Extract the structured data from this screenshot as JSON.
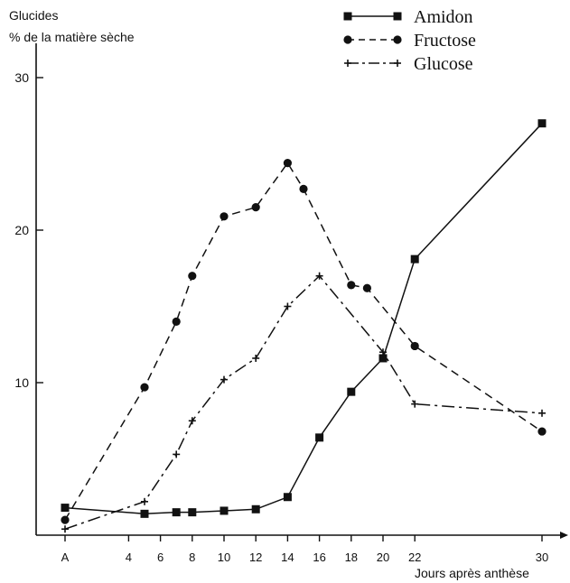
{
  "chart_data": {
    "type": "line",
    "ylabel_line1": "Glucides",
    "ylabel_line2": "% de la matière sèche",
    "xlabel": "Jours après anthèse",
    "ylim": [
      0,
      30
    ],
    "yticks": [
      10,
      20,
      30
    ],
    "xticks": [
      {
        "label": "A",
        "x": 0
      },
      {
        "label": "4",
        "x": 4
      },
      {
        "label": "6",
        "x": 6
      },
      {
        "label": "8",
        "x": 8
      },
      {
        "label": "10",
        "x": 10
      },
      {
        "label": "12",
        "x": 12
      },
      {
        "label": "14",
        "x": 14
      },
      {
        "label": "16",
        "x": 16
      },
      {
        "label": "18",
        "x": 18
      },
      {
        "label": "20",
        "x": 20
      },
      {
        "label": "22",
        "x": 22
      },
      {
        "label": "30",
        "x": 30
      }
    ],
    "grid": false,
    "legend_position": "top-right",
    "series": [
      {
        "name": "Amidon",
        "marker": "square",
        "dash": "solid",
        "color": "#111111",
        "points": [
          [
            0,
            1.8
          ],
          [
            5,
            1.4
          ],
          [
            7,
            1.5
          ],
          [
            8,
            1.5
          ],
          [
            10,
            1.6
          ],
          [
            12,
            1.7
          ],
          [
            14,
            2.5
          ],
          [
            16,
            6.4
          ],
          [
            18,
            9.4
          ],
          [
            20,
            11.6
          ],
          [
            22,
            18.1
          ],
          [
            30,
            27.0
          ]
        ]
      },
      {
        "name": "Fructose",
        "marker": "circle",
        "dash": "dashed",
        "color": "#111111",
        "points": [
          [
            0,
            1.0
          ],
          [
            5,
            9.7
          ],
          [
            7,
            14.0
          ],
          [
            8,
            17.0
          ],
          [
            10,
            20.9
          ],
          [
            12,
            21.5
          ],
          [
            14,
            24.4
          ],
          [
            15,
            22.7
          ],
          [
            18,
            16.4
          ],
          [
            19,
            16.2
          ],
          [
            22,
            12.4
          ],
          [
            30,
            6.8
          ]
        ]
      },
      {
        "name": "Glucose",
        "marker": "plus",
        "dash": "dashdot",
        "color": "#111111",
        "points": [
          [
            0,
            0.4
          ],
          [
            5,
            2.2
          ],
          [
            7,
            5.3
          ],
          [
            8,
            7.5
          ],
          [
            10,
            10.2
          ],
          [
            12,
            11.6
          ],
          [
            14,
            15.0
          ],
          [
            16,
            17.0
          ],
          [
            20,
            12.0
          ],
          [
            22,
            8.6
          ],
          [
            30,
            8.0
          ]
        ]
      }
    ]
  }
}
